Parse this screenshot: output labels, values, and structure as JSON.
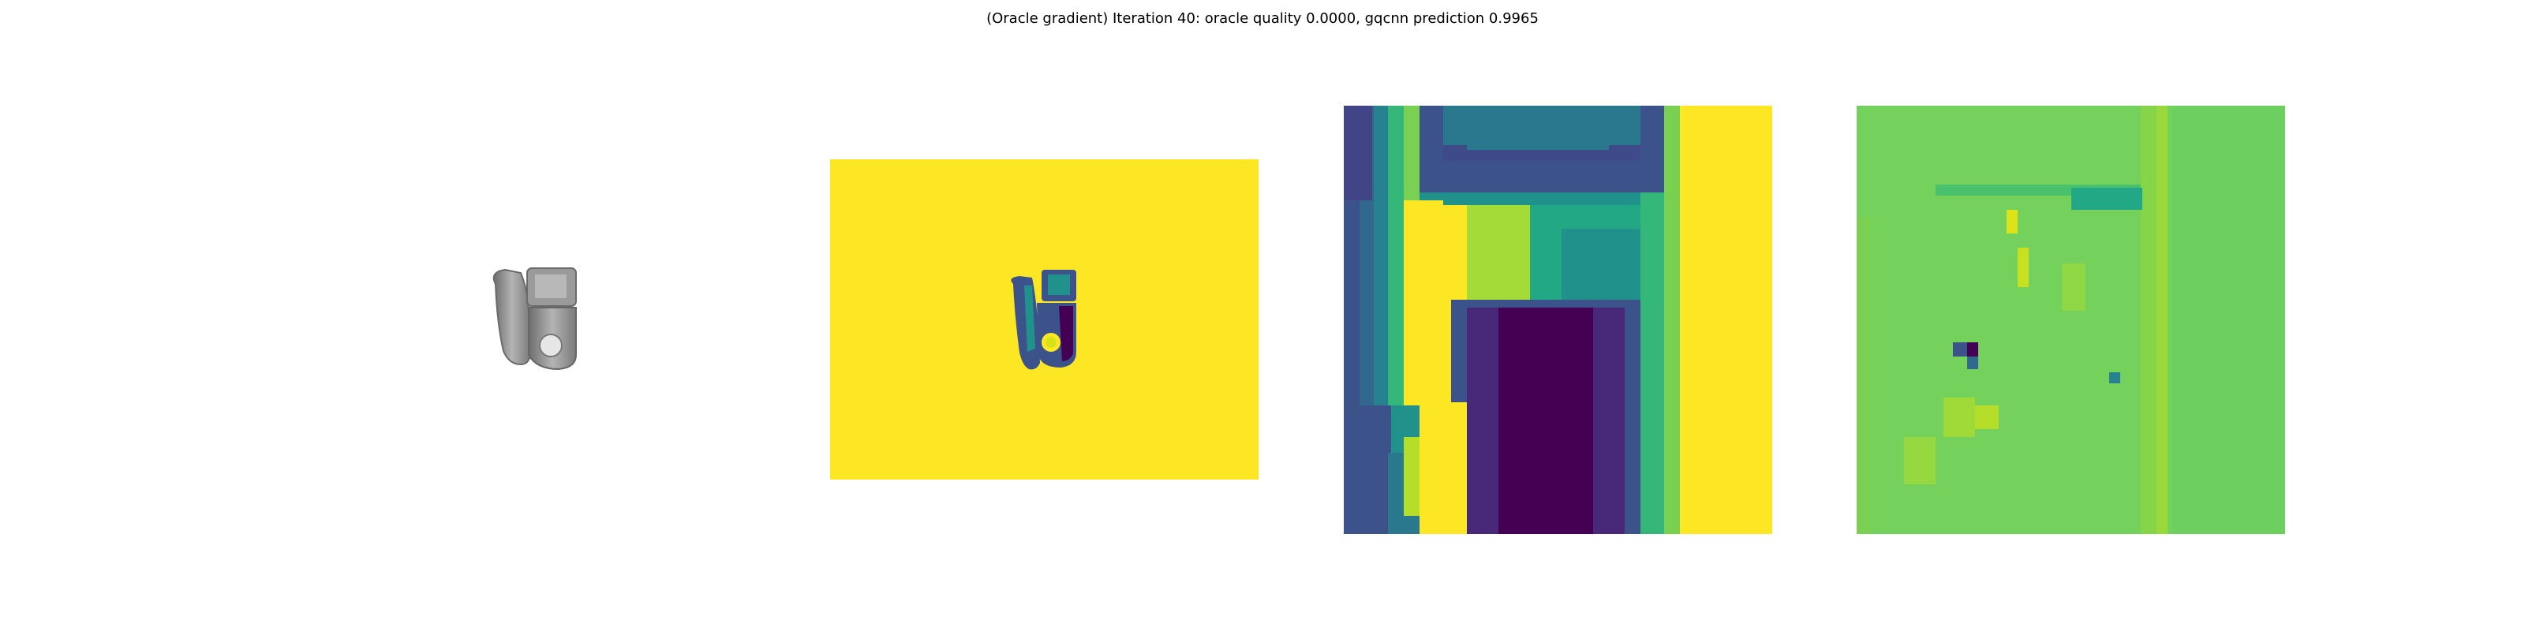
{
  "figure": {
    "title": "(Oracle gradient) Iteration 40: oracle quality 0.0000, gqcnn prediction 0.9965"
  },
  "palette": {
    "viridis_yellow": "#fde725",
    "viridis_dark": "#440154",
    "viridis_navy": "#3b528b",
    "viridis_teal": "#21918c",
    "viridis_green": "#5ec962",
    "grad_green": "#6ccf5f",
    "object_gray": "#8a8a8a"
  },
  "panels": [
    {
      "name": "object-render"
    },
    {
      "name": "depth-image"
    },
    {
      "name": "depth-crop"
    },
    {
      "name": "gradient-map"
    }
  ]
}
